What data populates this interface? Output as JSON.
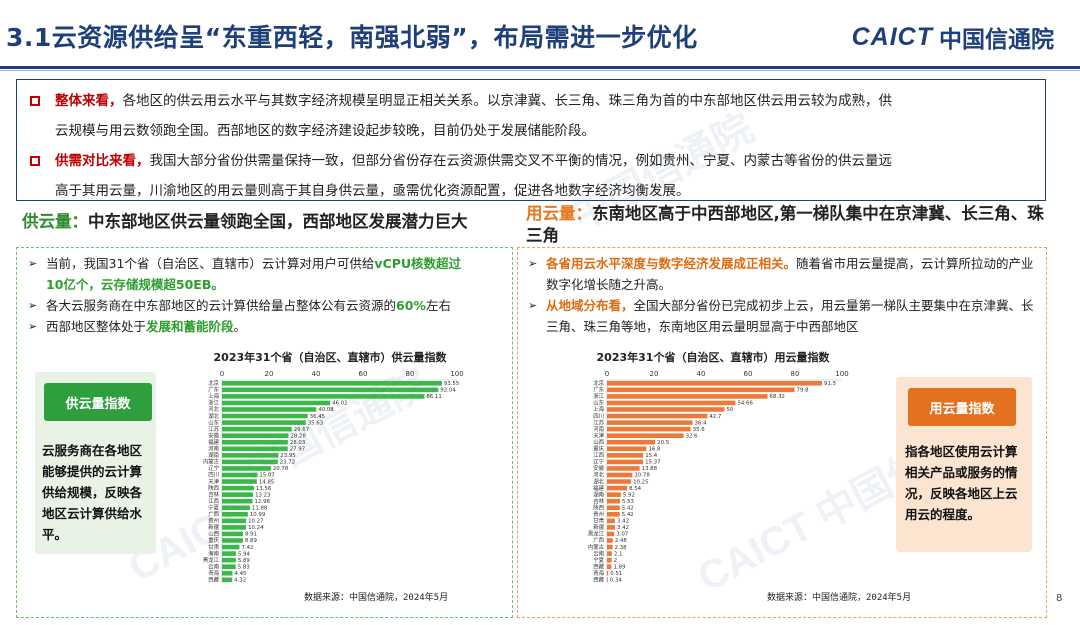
{
  "header": {
    "title": "3.1云资源供给呈“东重西轻，南强北弱”，布局需进一步优化",
    "logo_en": "CAICT",
    "logo_cn": "中国信通院"
  },
  "summary": [
    {
      "lead": "整体来看，",
      "text": "各地区的供云用云水平与其数字经济规模呈明显正相关关系。以京津冀、长三角、珠三角为首的中东部地区供云用云较为成熟，供",
      "text2": "云规模与用云数领跑全国。西部地区的数字经济建设起步较晚，目前仍处于发展储能阶段。"
    },
    {
      "lead": "供需对比来看，",
      "text": "我国大部分省份供需量保持一致，但部分省份存在云资源供需交叉不平衡的情况，例如贵州、宁夏、内蒙古等省份的供云量远",
      "text2": "高于其用云量，川渝地区的用云量则高于其自身供云量，亟需优化资源配置，促进各地数字经济均衡发展。"
    }
  ],
  "left": {
    "heading_lead": "供云量：",
    "heading_text": "中东部地区供云量领跑全国，西部地区发展潜力巨大",
    "b1a": "当前，我国31个省（自治区、直辖市）云计算对用户可供给",
    "b1b": "vCPU核数超过",
    "b1c": "10亿个，云存储规模超50EB。",
    "b2a": "各大云服务商在中东部地区的云计算供给量占整体公有云资源的",
    "b2b": "60%",
    "b2c": "左右",
    "b3a": "西部地区整体处于",
    "b3b": "发展和蓄能阶段",
    "b3c": "。",
    "index_label": "供云量指数",
    "index_desc": "云服务商在各地区能够提供的云计算供给规模，反映各地区云计算供给水平。",
    "source": "数据来源：中国信通院，2024年5月"
  },
  "right": {
    "heading_lead": "用云量：",
    "heading_text": "东南地区高于中西部地区,第一梯队集中在京津冀、长三角、珠三角",
    "b1a": "各省用云水平深度与数字经济发展成正相关。",
    "b1b": "随着省市用云量提高，云计算所拉动的产业数字化增长随之升高。",
    "b2a": "从地域分布看，",
    "b2b": "全国大部分省份已完成初步上云，用云量第一梯队主要集中在京津冀、长三角、珠三角等地，东南地区用云量明显高于中西部地区",
    "index_label": "用云量指数",
    "index_desc": "指各地区使用云计算相关产品或服务的情况，反映各地区上云用云的程度。",
    "source": "数据来源：中国信通院，2024年5月"
  },
  "page_number": "8",
  "colors": {
    "navy": "#1f3f7a",
    "green": "#3cb84a",
    "orange": "#ee7a3a",
    "red": "#c00000"
  },
  "chart_data": [
    {
      "type": "bar",
      "orientation": "horizontal",
      "title": "2023年31个省（自治区、直辖市）供云量指数",
      "xlim": [
        0,
        100
      ],
      "xticks": [
        0,
        20,
        40,
        60,
        80,
        100
      ],
      "grid": false,
      "color": "#3cb84a",
      "categories": [
        "北京",
        "广东",
        "上海",
        "浙江",
        "河北",
        "湖北",
        "山东",
        "江苏",
        "安徽",
        "福建",
        "河南",
        "湖南",
        "内蒙古",
        "辽宁",
        "四川",
        "天津",
        "陕西",
        "吉林",
        "江西",
        "宁夏",
        "广西",
        "贵州",
        "新疆",
        "山西",
        "重庆",
        "甘肃",
        "海南",
        "黑龙江",
        "云南",
        "青海",
        "西藏"
      ],
      "values": [
        93.55,
        92.04,
        86.11,
        46.02,
        40.08,
        36.45,
        35.63,
        29.67,
        28.28,
        28.03,
        27.97,
        23.95,
        23.72,
        20.78,
        15.07,
        14.85,
        13.56,
        13.23,
        12.98,
        11.88,
        10.99,
        10.27,
        10.24,
        8.91,
        8.89,
        7.42,
        5.94,
        5.89,
        5.83,
        4.45,
        4.32
      ]
    },
    {
      "type": "bar",
      "orientation": "horizontal",
      "title": "2023年31个省（自治区、直辖市）用云量指数",
      "xlim": [
        0,
        100
      ],
      "xticks": [
        0,
        20,
        40,
        60,
        80,
        100
      ],
      "grid": false,
      "color": "#ee7a3a",
      "categories": [
        "北京",
        "广东",
        "浙江",
        "山东",
        "上海",
        "四川",
        "江苏",
        "河南",
        "天津",
        "山西",
        "重庆",
        "江西",
        "辽宁",
        "安徽",
        "河北",
        "湖北",
        "福建",
        "湖南",
        "吉林",
        "陕西",
        "贵州",
        "甘肃",
        "新疆",
        "黑龙江",
        "广西",
        "内蒙古",
        "云南",
        "宁夏",
        "西藏",
        "青海",
        "西藏"
      ],
      "values": [
        91.5,
        79.8,
        68.32,
        54.66,
        50.0,
        42.7,
        36.4,
        35.6,
        32.6,
        20.5,
        16.8,
        15.4,
        15.37,
        13.88,
        10.78,
        10.25,
        8.54,
        5.92,
        5.53,
        5.42,
        5.42,
        3.42,
        3.42,
        3.07,
        2.48,
        2.38,
        2.1,
        2.0,
        1.89,
        0.51,
        0.34
      ]
    }
  ]
}
